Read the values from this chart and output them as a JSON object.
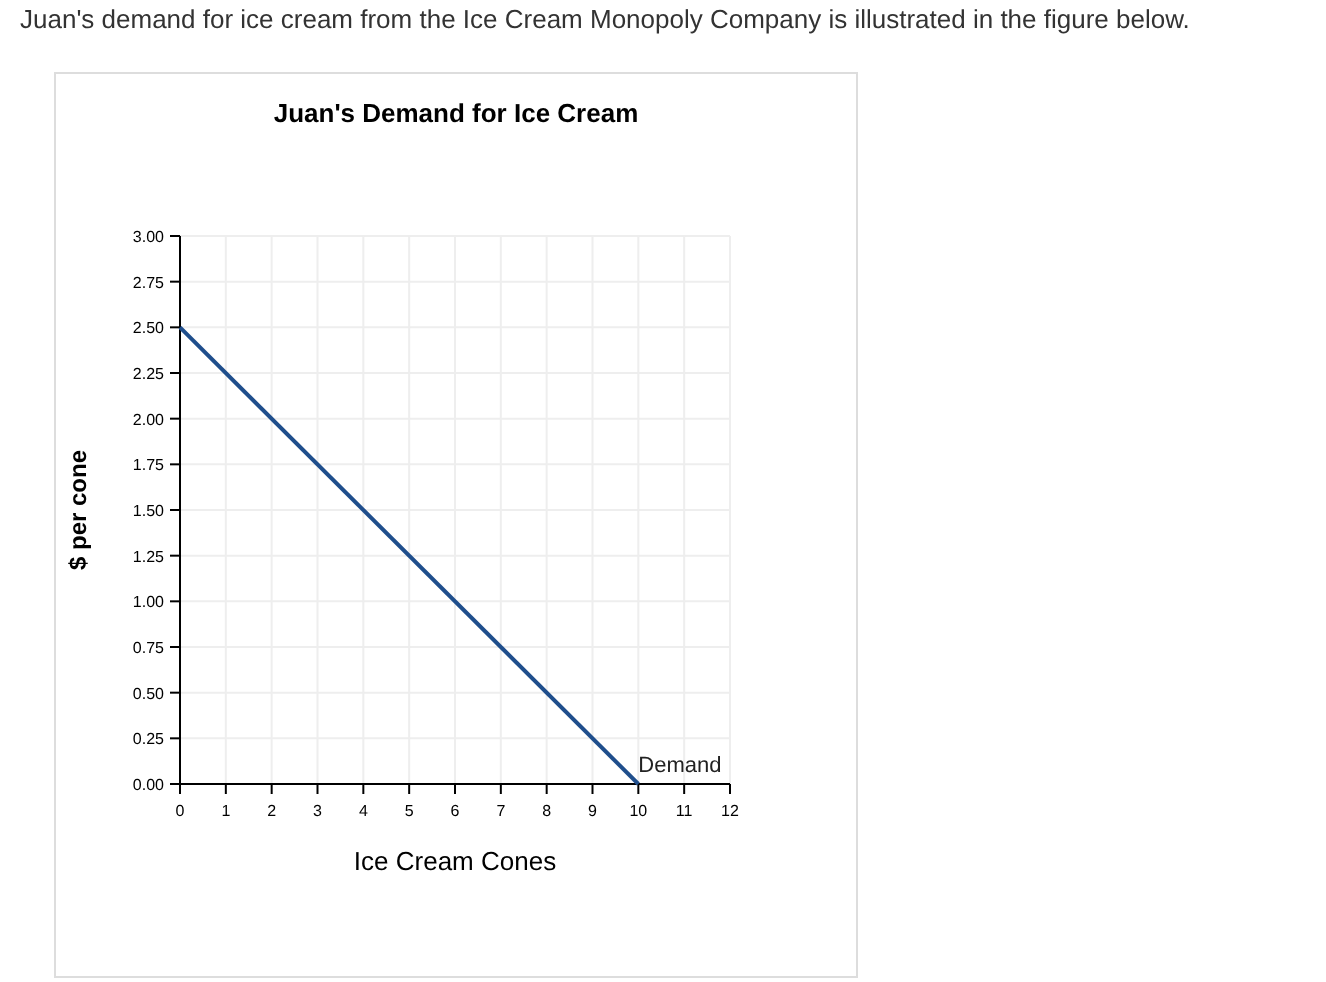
{
  "chart_data": {
    "type": "line",
    "title": "Juan's Demand for Ice Cream",
    "xlabel": "Ice Cream Cones",
    "ylabel": "$ per cone",
    "annotations": [
      "Juan's demand for ice cream from the Ice Cream Monopoly Company is illustrated in the figure below."
    ],
    "x": [
      0,
      10
    ],
    "series": [
      {
        "name": "Demand",
        "color": "#1f4e8c",
        "values": [
          2.5,
          0
        ]
      }
    ],
    "xlim": [
      0,
      12
    ],
    "xticks": [
      0,
      1,
      2,
      3,
      4,
      5,
      6,
      7,
      8,
      9,
      10,
      11,
      12
    ],
    "ylim": [
      0,
      3
    ],
    "yticks": [
      {
        "value": 0,
        "label": "0.00"
      },
      {
        "value": 0.25,
        "label": "0.25"
      },
      {
        "value": 0.5,
        "label": "0.50"
      },
      {
        "value": 0.75,
        "label": "0.75"
      },
      {
        "value": 1,
        "label": "1.00"
      },
      {
        "value": 1.25,
        "label": "1.25"
      },
      {
        "value": 1.5,
        "label": "1.50"
      },
      {
        "value": 1.75,
        "label": "1.75"
      },
      {
        "value": 2,
        "label": "2.00"
      },
      {
        "value": 2.25,
        "label": "2.25"
      },
      {
        "value": 2.5,
        "label": "2.50"
      },
      {
        "value": 2.75,
        "label": "2.75"
      },
      {
        "value": 3,
        "label": "3.00"
      }
    ],
    "grid": true,
    "legend": false,
    "marker": "none",
    "line_style": "solid"
  }
}
